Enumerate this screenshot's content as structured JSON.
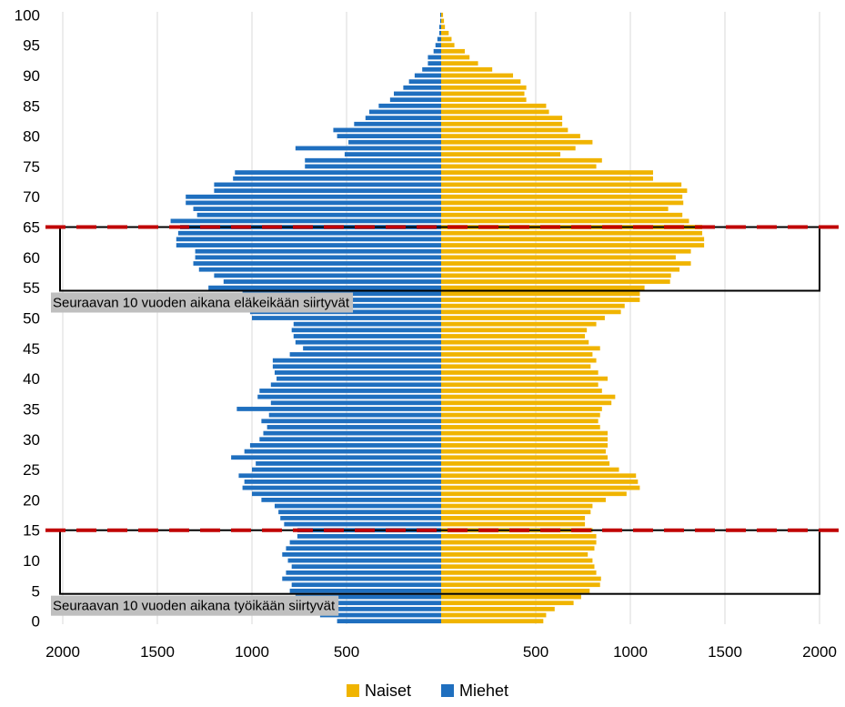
{
  "chart_data": {
    "type": "bar",
    "subtype": "population-pyramid",
    "orientation": "horizontal",
    "y_axis_ticks": [
      "0",
      "5",
      "10",
      "15",
      "20",
      "25",
      "30",
      "35",
      "40",
      "45",
      "50",
      "55",
      "60",
      "65",
      "70",
      "75",
      "80",
      "85",
      "90",
      "95",
      "100"
    ],
    "x_axis_ticks": [
      "2000",
      "1500",
      "1000",
      "500",
      "500",
      "1000",
      "1500",
      "2000"
    ],
    "xlim": [
      -2000,
      2000
    ],
    "ylim": [
      0,
      100
    ],
    "grid": true,
    "legend_position": "bottom",
    "series": [
      {
        "name": "Naiset",
        "side": "right",
        "color": "#F0B400",
        "values": [
          540,
          555,
          600,
          700,
          740,
          785,
          840,
          845,
          820,
          810,
          800,
          775,
          810,
          820,
          820,
          800,
          760,
          760,
          790,
          800,
          870,
          980,
          1050,
          1040,
          1030,
          940,
          890,
          880,
          870,
          880,
          880,
          880,
          840,
          830,
          840,
          850,
          900,
          920,
          850,
          830,
          880,
          830,
          790,
          820,
          800,
          840,
          780,
          760,
          770,
          820,
          865,
          950,
          970,
          1050,
          1050,
          1075,
          1210,
          1215,
          1260,
          1320,
          1240,
          1320,
          1390,
          1390,
          1380,
          1380,
          1310,
          1275,
          1200,
          1280,
          1275,
          1300,
          1270,
          1120,
          1120,
          820,
          850,
          630,
          710,
          800,
          735,
          670,
          640,
          640,
          570,
          555,
          450,
          440,
          450,
          420,
          380,
          270,
          195,
          150,
          125,
          70,
          55,
          40,
          20,
          15,
          10
        ]
      },
      {
        "name": "Miehet",
        "side": "left",
        "color": "#1F6FBF",
        "values": [
          550,
          640,
          680,
          760,
          770,
          800,
          790,
          840,
          820,
          790,
          810,
          840,
          820,
          800,
          760,
          760,
          830,
          850,
          860,
          880,
          950,
          1000,
          1050,
          1040,
          1070,
          1000,
          980,
          1110,
          1040,
          1010,
          960,
          940,
          920,
          950,
          910,
          1080,
          900,
          970,
          960,
          900,
          870,
          880,
          890,
          890,
          800,
          730,
          770,
          780,
          790,
          780,
          1000,
          1010,
          1040,
          1030,
          1050,
          1230,
          1150,
          1200,
          1280,
          1310,
          1300,
          1300,
          1400,
          1400,
          1390,
          1380,
          1430,
          1290,
          1310,
          1350,
          1350,
          1200,
          1200,
          1100,
          1090,
          720,
          720,
          510,
          770,
          490,
          550,
          570,
          460,
          400,
          380,
          330,
          270,
          250,
          200,
          170,
          140,
          100,
          70,
          70,
          40,
          30,
          20,
          10,
          10,
          5,
          5,
          0,
          0
        ]
      }
    ],
    "highlight_boxes": [
      {
        "label": "Seuraavan 10 vuoden aikana eläkeikään siirtyvät",
        "y_from": 55,
        "y_to": 65
      },
      {
        "label": "Seuraavan 10 vuoden aikana työikään siirtyvät",
        "y_from": 5,
        "y_to": 15
      }
    ],
    "reference_lines": [
      65,
      15
    ]
  },
  "colors": {
    "naiset": "#F0B400",
    "miehet": "#1F6FBF",
    "grid": "#D9D9D9",
    "reference_line": "#C00000",
    "box_border": "#000000",
    "label_bg": "#BFBFBF"
  }
}
